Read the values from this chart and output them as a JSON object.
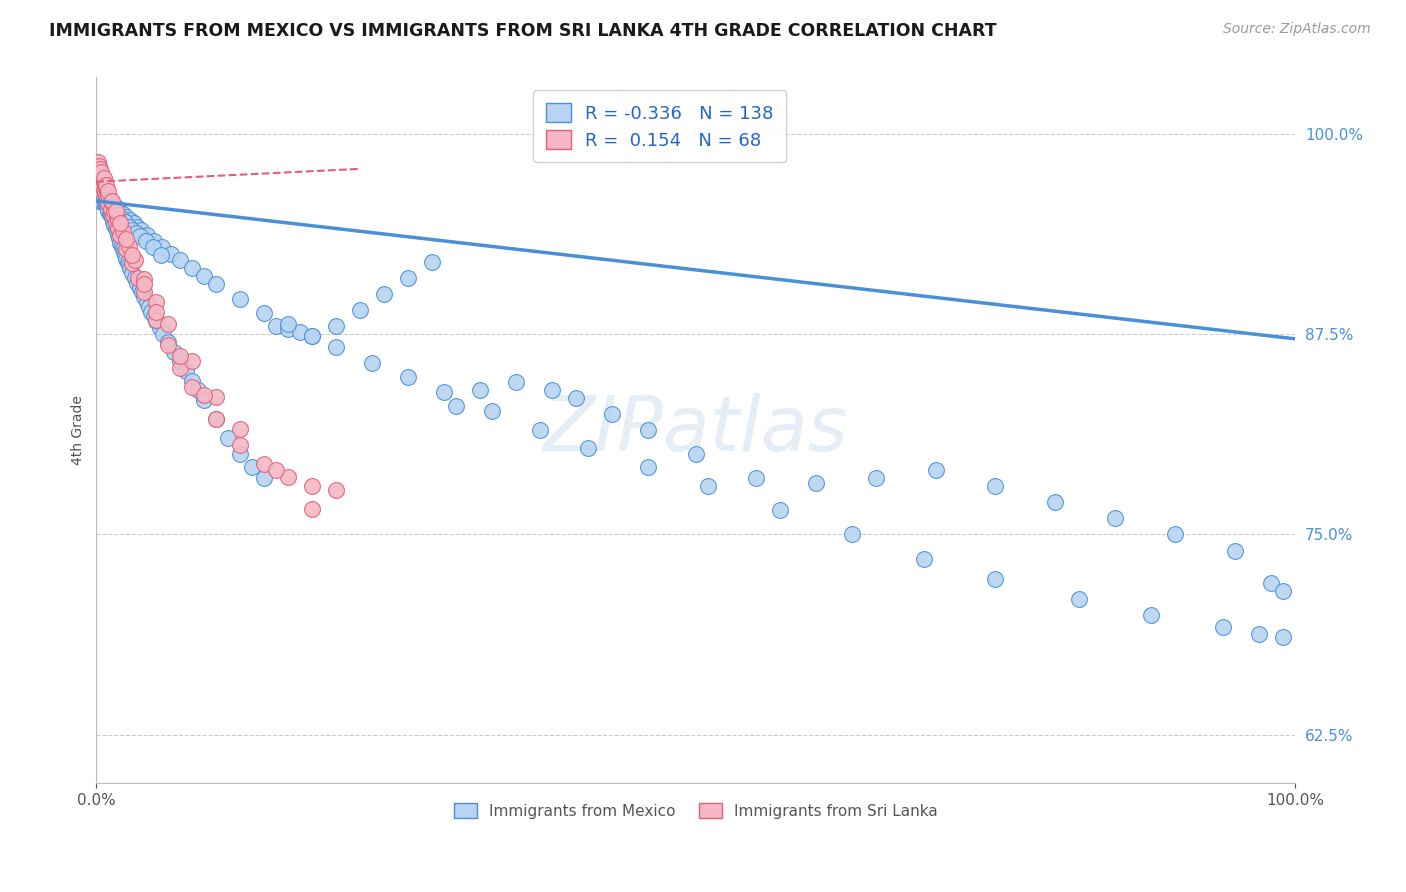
{
  "title": "IMMIGRANTS FROM MEXICO VS IMMIGRANTS FROM SRI LANKA 4TH GRADE CORRELATION CHART",
  "source": "Source: ZipAtlas.com",
  "ylabel": "4th Grade",
  "ytick_vals": [
    0.625,
    0.75,
    0.875,
    1.0
  ],
  "ytick_labels": [
    "62.5%",
    "75.0%",
    "87.5%",
    "100.0%"
  ],
  "xtick_vals": [
    0.0,
    1.0
  ],
  "xtick_labels": [
    "0.0%",
    "100.0%"
  ],
  "R_blue": -0.336,
  "N_blue": 138,
  "R_pink": 0.154,
  "N_pink": 68,
  "blue_scatter_x": [
    0.002,
    0.003,
    0.004,
    0.005,
    0.006,
    0.007,
    0.008,
    0.009,
    0.01,
    0.011,
    0.012,
    0.013,
    0.014,
    0.015,
    0.016,
    0.017,
    0.018,
    0.019,
    0.02,
    0.021,
    0.022,
    0.023,
    0.024,
    0.025,
    0.026,
    0.027,
    0.028,
    0.03,
    0.032,
    0.034,
    0.036,
    0.038,
    0.04,
    0.042,
    0.044,
    0.046,
    0.048,
    0.05,
    0.053,
    0.056,
    0.06,
    0.065,
    0.07,
    0.075,
    0.08,
    0.085,
    0.09,
    0.1,
    0.11,
    0.12,
    0.13,
    0.14,
    0.15,
    0.16,
    0.17,
    0.18,
    0.2,
    0.22,
    0.24,
    0.26,
    0.28,
    0.3,
    0.32,
    0.35,
    0.38,
    0.4,
    0.43,
    0.46,
    0.5,
    0.55,
    0.6,
    0.65,
    0.7,
    0.75,
    0.8,
    0.85,
    0.9,
    0.95,
    0.98,
    0.99,
    0.003,
    0.005,
    0.007,
    0.01,
    0.013,
    0.016,
    0.019,
    0.022,
    0.025,
    0.028,
    0.031,
    0.034,
    0.037,
    0.042,
    0.048,
    0.055,
    0.062,
    0.07,
    0.08,
    0.09,
    0.1,
    0.12,
    0.14,
    0.16,
    0.18,
    0.2,
    0.23,
    0.26,
    0.29,
    0.33,
    0.37,
    0.41,
    0.46,
    0.51,
    0.57,
    0.63,
    0.69,
    0.75,
    0.82,
    0.88,
    0.94,
    0.97,
    0.99,
    0.004,
    0.006,
    0.008,
    0.011,
    0.014,
    0.017,
    0.021,
    0.024,
    0.027,
    0.03,
    0.033,
    0.036,
    0.041,
    0.047,
    0.054
  ],
  "blue_scatter_y": [
    0.958,
    0.962,
    0.96,
    0.958,
    0.96,
    0.957,
    0.956,
    0.954,
    0.952,
    0.95,
    0.949,
    0.948,
    0.945,
    0.943,
    0.941,
    0.939,
    0.937,
    0.935,
    0.932,
    0.93,
    0.928,
    0.926,
    0.924,
    0.922,
    0.92,
    0.918,
    0.916,
    0.913,
    0.91,
    0.907,
    0.904,
    0.901,
    0.898,
    0.895,
    0.892,
    0.889,
    0.886,
    0.883,
    0.879,
    0.875,
    0.87,
    0.864,
    0.858,
    0.852,
    0.846,
    0.84,
    0.834,
    0.822,
    0.81,
    0.8,
    0.792,
    0.785,
    0.88,
    0.878,
    0.876,
    0.874,
    0.88,
    0.89,
    0.9,
    0.91,
    0.92,
    0.83,
    0.84,
    0.845,
    0.84,
    0.835,
    0.825,
    0.815,
    0.8,
    0.785,
    0.782,
    0.785,
    0.79,
    0.78,
    0.77,
    0.76,
    0.75,
    0.74,
    0.72,
    0.715,
    0.963,
    0.961,
    0.96,
    0.958,
    0.956,
    0.954,
    0.952,
    0.95,
    0.948,
    0.946,
    0.944,
    0.942,
    0.94,
    0.937,
    0.933,
    0.929,
    0.925,
    0.921,
    0.916,
    0.911,
    0.906,
    0.897,
    0.888,
    0.881,
    0.874,
    0.867,
    0.857,
    0.848,
    0.839,
    0.827,
    0.815,
    0.804,
    0.792,
    0.78,
    0.765,
    0.75,
    0.735,
    0.722,
    0.71,
    0.7,
    0.692,
    0.688,
    0.686,
    0.962,
    0.96,
    0.958,
    0.955,
    0.953,
    0.95,
    0.947,
    0.945,
    0.942,
    0.94,
    0.938,
    0.936,
    0.933,
    0.929,
    0.924
  ],
  "pink_scatter_x": [
    0.001,
    0.002,
    0.003,
    0.004,
    0.005,
    0.006,
    0.007,
    0.008,
    0.009,
    0.01,
    0.012,
    0.014,
    0.016,
    0.018,
    0.02,
    0.025,
    0.03,
    0.035,
    0.04,
    0.05,
    0.06,
    0.07,
    0.08,
    0.1,
    0.12,
    0.14,
    0.16,
    0.18,
    0.2,
    0.001,
    0.002,
    0.003,
    0.004,
    0.005,
    0.006,
    0.007,
    0.008,
    0.01,
    0.012,
    0.015,
    0.018,
    0.022,
    0.027,
    0.032,
    0.04,
    0.05,
    0.06,
    0.08,
    0.1,
    0.12,
    0.15,
    0.18,
    0.001,
    0.002,
    0.003,
    0.004,
    0.006,
    0.008,
    0.01,
    0.013,
    0.016,
    0.02,
    0.025,
    0.03,
    0.04,
    0.05,
    0.07,
    0.09
  ],
  "pink_scatter_y": [
    0.975,
    0.973,
    0.971,
    0.969,
    0.967,
    0.965,
    0.963,
    0.961,
    0.959,
    0.957,
    0.953,
    0.949,
    0.945,
    0.941,
    0.937,
    0.928,
    0.919,
    0.91,
    0.901,
    0.884,
    0.868,
    0.854,
    0.842,
    0.822,
    0.806,
    0.794,
    0.786,
    0.78,
    0.778,
    0.98,
    0.978,
    0.976,
    0.974,
    0.972,
    0.97,
    0.968,
    0.966,
    0.962,
    0.958,
    0.952,
    0.946,
    0.939,
    0.93,
    0.921,
    0.909,
    0.895,
    0.881,
    0.858,
    0.836,
    0.816,
    0.79,
    0.766,
    0.982,
    0.98,
    0.978,
    0.976,
    0.972,
    0.968,
    0.964,
    0.958,
    0.952,
    0.944,
    0.934,
    0.924,
    0.906,
    0.889,
    0.861,
    0.837
  ],
  "blue_line_x": [
    0.0,
    1.0
  ],
  "blue_line_y": [
    0.958,
    0.872
  ],
  "pink_line_x": [
    0.0,
    0.22
  ],
  "pink_line_y": [
    0.97,
    0.978
  ],
  "blue_color": "#4a90d9",
  "blue_scatter_color": "#b8d4f0",
  "pink_color": "#e0607a",
  "pink_scatter_color": "#f5b8c4",
  "watermark_color": "#d0dff0",
  "bg_color": "#ffffff",
  "legend_label_blue": "Immigrants from Mexico",
  "legend_label_pink": "Immigrants from Sri Lanka"
}
